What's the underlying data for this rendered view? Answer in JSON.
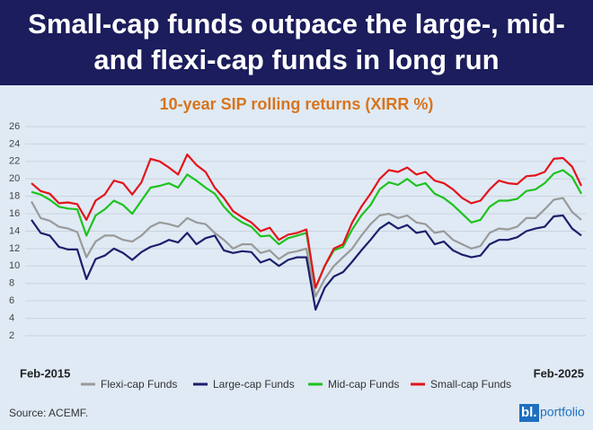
{
  "chart_data": {
    "type": "line",
    "title": "Small-cap funds outpace the large-, mid- and flexi-cap funds in long run",
    "subtitle": "10-year SIP rolling returns (XIRR %)",
    "source": "Source: ACEMF.",
    "logo_mark": "bl.",
    "logo_text": "portfolio",
    "categories": [
      "Feb-2015",
      null,
      null,
      null,
      null,
      null,
      null,
      null,
      null,
      null,
      null,
      null,
      null,
      null,
      null,
      null,
      null,
      null,
      null,
      null,
      null,
      null,
      null,
      null,
      null,
      null,
      null,
      null,
      null,
      null,
      null,
      null,
      null,
      null,
      null,
      null,
      null,
      null,
      null,
      null,
      null,
      null,
      null,
      null,
      null,
      null,
      null,
      null,
      null,
      null,
      null,
      null,
      null,
      null,
      null,
      null,
      null,
      null,
      null,
      null,
      "Feb-2025"
    ],
    "ylim": [
      2,
      26
    ],
    "yticks": [
      2,
      4,
      6,
      8,
      10,
      12,
      14,
      16,
      18,
      20,
      22,
      24,
      26
    ],
    "grid": true,
    "series": [
      {
        "name": "Flexi-cap Funds",
        "color": "#9a9a9a",
        "values": [
          17.4,
          15.5,
          15.2,
          14.5,
          14.3,
          13.9,
          11.0,
          12.8,
          13.5,
          13.5,
          13.0,
          12.8,
          13.5,
          14.5,
          15.0,
          14.8,
          14.5,
          15.5,
          15.0,
          14.8,
          13.8,
          13.0,
          12.0,
          12.5,
          12.5,
          11.5,
          11.8,
          10.8,
          11.5,
          11.7,
          12.0,
          6.5,
          8.5,
          10.0,
          11.0,
          12.0,
          13.5,
          14.8,
          15.8,
          16.0,
          15.5,
          15.8,
          15.0,
          14.8,
          13.8,
          14.0,
          13.0,
          12.5,
          12.0,
          12.3,
          13.8,
          14.3,
          14.2,
          14.5,
          15.5,
          15.5,
          16.5,
          17.6,
          17.8,
          16.2,
          15.3
        ]
      },
      {
        "name": "Large-cap Funds",
        "color": "#1c1f6b",
        "values": [
          15.3,
          13.8,
          13.5,
          12.2,
          11.9,
          11.9,
          8.5,
          10.8,
          11.2,
          12.0,
          11.5,
          10.7,
          11.6,
          12.2,
          12.5,
          13.0,
          12.7,
          13.8,
          12.5,
          13.2,
          13.5,
          11.8,
          11.5,
          11.7,
          11.6,
          10.4,
          10.8,
          10.0,
          10.7,
          11.0,
          11.0,
          5.0,
          7.5,
          8.8,
          9.3,
          10.5,
          11.8,
          13.0,
          14.3,
          15.0,
          14.3,
          14.7,
          13.8,
          14.0,
          12.5,
          12.8,
          11.8,
          11.3,
          11.0,
          11.2,
          12.5,
          13.0,
          13.0,
          13.3,
          14.0,
          14.3,
          14.5,
          15.7,
          15.8,
          14.3,
          13.5
        ]
      },
      {
        "name": "Mid-cap Funds",
        "color": "#1fc21f",
        "values": [
          18.5,
          18.2,
          17.6,
          16.8,
          16.6,
          16.5,
          13.5,
          15.8,
          16.5,
          17.5,
          17.0,
          16.0,
          17.5,
          19.0,
          19.2,
          19.5,
          19.0,
          20.5,
          19.8,
          19.0,
          18.3,
          16.8,
          15.7,
          15.0,
          14.5,
          13.4,
          13.5,
          12.5,
          13.2,
          13.5,
          13.8,
          7.5,
          10.0,
          11.8,
          12.2,
          14.2,
          15.8,
          17.0,
          18.8,
          19.6,
          19.3,
          20.0,
          19.2,
          19.5,
          18.3,
          17.8,
          17.0,
          16.0,
          15.0,
          15.3,
          16.8,
          17.5,
          17.5,
          17.7,
          18.6,
          18.8,
          19.5,
          20.6,
          21.0,
          20.2,
          18.3
        ]
      },
      {
        "name": "Small-cap Funds",
        "color": "#e3141b",
        "values": [
          19.5,
          18.6,
          18.3,
          17.2,
          17.3,
          17.1,
          15.3,
          17.5,
          18.2,
          19.8,
          19.5,
          18.2,
          19.6,
          22.3,
          22.0,
          21.3,
          20.5,
          22.8,
          21.6,
          20.8,
          19.0,
          17.8,
          16.3,
          15.6,
          15.0,
          14.0,
          14.4,
          13.0,
          13.6,
          13.8,
          14.2,
          7.5,
          10.0,
          12.0,
          12.5,
          15.0,
          16.8,
          18.3,
          20.0,
          21.0,
          20.8,
          21.3,
          20.5,
          20.8,
          19.8,
          19.5,
          18.8,
          17.8,
          17.2,
          17.5,
          18.8,
          19.8,
          19.5,
          19.4,
          20.3,
          20.4,
          20.8,
          22.3,
          22.4,
          21.4,
          19.2
        ]
      }
    ]
  }
}
